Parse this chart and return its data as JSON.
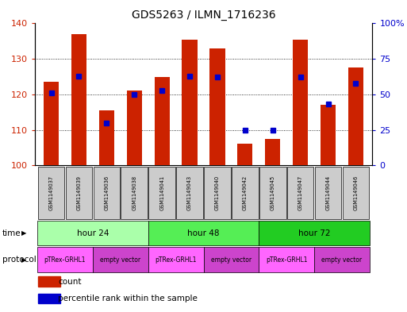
{
  "title": "GDS5263 / ILMN_1716236",
  "samples": [
    "GSM1149037",
    "GSM1149039",
    "GSM1149036",
    "GSM1149038",
    "GSM1149041",
    "GSM1149043",
    "GSM1149040",
    "GSM1149042",
    "GSM1149045",
    "GSM1149047",
    "GSM1149044",
    "GSM1149046"
  ],
  "counts": [
    123.5,
    137.0,
    115.5,
    121.0,
    125.0,
    135.5,
    133.0,
    106.0,
    107.5,
    135.5,
    117.0,
    127.5
  ],
  "percentile_ranks": [
    51,
    63,
    30,
    50,
    53,
    63,
    62,
    25,
    25,
    62,
    43,
    58
  ],
  "ylim_left": [
    100,
    140
  ],
  "ylim_right": [
    0,
    100
  ],
  "yticks_left": [
    100,
    110,
    120,
    130,
    140
  ],
  "yticks_right": [
    0,
    25,
    50,
    75,
    100
  ],
  "yticklabels_right": [
    "0",
    "25",
    "50",
    "75",
    "100%"
  ],
  "time_groups": [
    {
      "label": "hour 24",
      "start": 0,
      "end": 4,
      "color": "#AAFFAA"
    },
    {
      "label": "hour 48",
      "start": 4,
      "end": 8,
      "color": "#55EE55"
    },
    {
      "label": "hour 72",
      "start": 8,
      "end": 12,
      "color": "#22CC22"
    }
  ],
  "protocol_groups": [
    {
      "label": "pTRex-GRHL1",
      "start": 0,
      "end": 2,
      "color": "#FF66FF"
    },
    {
      "label": "empty vector",
      "start": 2,
      "end": 4,
      "color": "#CC44CC"
    },
    {
      "label": "pTRex-GRHL1",
      "start": 4,
      "end": 6,
      "color": "#FF66FF"
    },
    {
      "label": "empty vector",
      "start": 6,
      "end": 8,
      "color": "#CC44CC"
    },
    {
      "label": "pTRex-GRHL1",
      "start": 8,
      "end": 10,
      "color": "#FF66FF"
    },
    {
      "label": "empty vector",
      "start": 10,
      "end": 12,
      "color": "#CC44CC"
    }
  ],
  "bar_color": "#CC2200",
  "dot_color": "#0000CC",
  "bar_width": 0.55,
  "left_label_color": "#CC2200",
  "right_label_color": "#0000CC",
  "background_color": "#ffffff",
  "grid_color": "#000000",
  "time_label": "time",
  "protocol_label": "protocol",
  "legend_count": "count",
  "legend_percentile": "percentile rank within the sample",
  "sample_box_color": "#cccccc",
  "dot_size": 4
}
